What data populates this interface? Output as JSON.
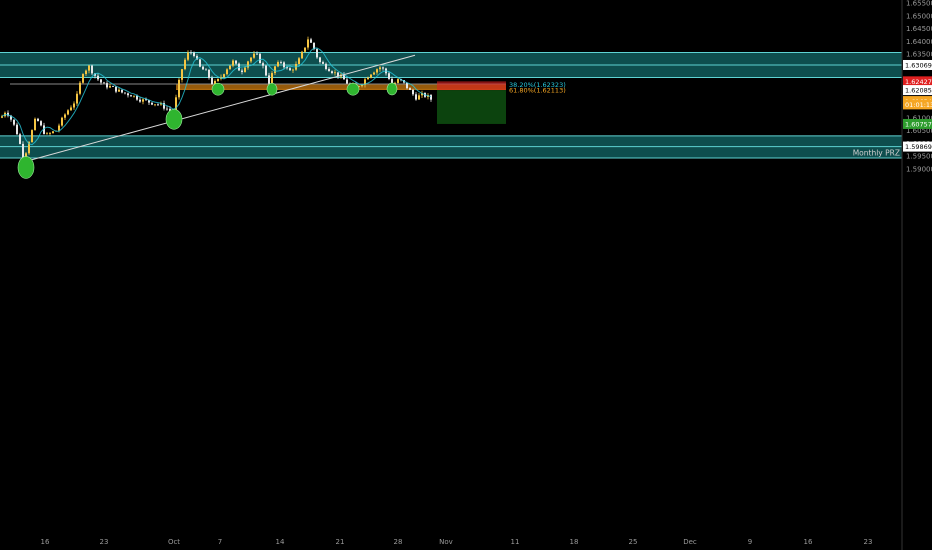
{
  "chart_data": {
    "type": "candlestick",
    "title": "",
    "xlabel": "",
    "ylabel": "",
    "ylim": [
      1.5885,
      1.6555
    ],
    "grid": false,
    "y_ticks": [
      "1.65500",
      "1.65000",
      "1.64500",
      "1.64000",
      "1.63500",
      "1.63000",
      "1.62500",
      "1.62000",
      "1.61500",
      "1.61000",
      "1.60500",
      "1.60000",
      "1.59500",
      "1.59000"
    ],
    "x_ticks": [
      "16",
      "23",
      "Oct",
      "7",
      "14",
      "21",
      "28",
      "Nov",
      "11",
      "18",
      "25",
      "Dec",
      "9",
      "16",
      "23"
    ],
    "price_tags": [
      {
        "label": "1.63069",
        "value": 1.63069,
        "bg": "#ffffff",
        "fg": "#000000",
        "key": "upper-line"
      },
      {
        "label": "1.62427",
        "value": 1.62427,
        "bg": "#e02020",
        "fg": "#ffffff",
        "key": "stop-loss"
      },
      {
        "label": "1.62085",
        "value": 1.62085,
        "bg": "#ffffff",
        "fg": "#000000",
        "key": "entry"
      },
      {
        "label": "1.61654",
        "value": 1.61654,
        "bg": "#f5a623",
        "fg": "#ffffff",
        "key": "last-price"
      },
      {
        "label": "01:01:13",
        "value": 1.61524,
        "bg": "#f5a623",
        "fg": "#ffffff",
        "key": "countdown"
      },
      {
        "label": "1.60757",
        "value": 1.60757,
        "bg": "#2e9c2e",
        "fg": "#ffffff",
        "key": "take-profit"
      },
      {
        "label": "1.59869",
        "value": 1.59869,
        "bg": "#ffffff",
        "fg": "#000000",
        "key": "lower-line"
      }
    ],
    "zones": [
      {
        "name": "upper-resistance-zone",
        "top": 1.6356,
        "bottom": 1.6258,
        "mid": 1.63069
      },
      {
        "name": "lower-support-zone",
        "top": 1.6029,
        "bottom": 1.5942,
        "mid": 1.59869
      }
    ],
    "zone_label": "Monthly PRZ",
    "fib_levels": [
      {
        "label": "38.20%(1.62323)",
        "value": 1.62323,
        "color": "#26c6da"
      },
      {
        "label": "61.80%(1.62113)",
        "value": 1.62113,
        "color": "#f5a623"
      }
    ],
    "position": {
      "entry": 1.62085,
      "stop": 1.62427,
      "target": 1.60757
    },
    "trendline": {
      "from": {
        "x": "Sep 13",
        "y": 1.5928
      },
      "to": {
        "x": "Oct 28",
        "y": 1.6345
      }
    },
    "colors": {
      "zone": "#0e4e4e",
      "zone_border": "#5fd3d3",
      "candle_up": "#f5c542",
      "candle_down": "#e8e8e8",
      "ma": "#26c6da",
      "fib_band": "#c8780f",
      "stop": "#e02020",
      "target": "#2e9c2e",
      "marker": "#2fb52f"
    }
  }
}
